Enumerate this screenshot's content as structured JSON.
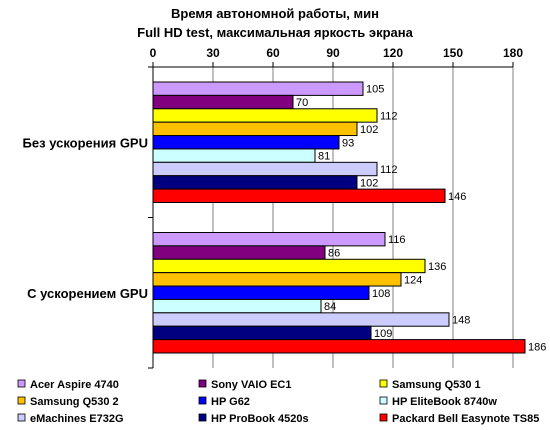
{
  "chart_data": {
    "type": "bar",
    "orientation": "horizontal",
    "title": "Время автономной работы, мин",
    "subtitle": "Full HD test, максимальная яркость экрана",
    "xlim": [
      0,
      180
    ],
    "xticks": [
      "0",
      "30",
      "60",
      "90",
      "120",
      "150",
      "180"
    ],
    "xtick_values": [
      0,
      30,
      60,
      90,
      120,
      150,
      180
    ],
    "grid": true,
    "legend_position": "bottom",
    "categories": [
      "Без ускорения GPU",
      "С ускорением GPU"
    ],
    "series": [
      {
        "name": "Acer Aspire 4740",
        "color": "#cc99ff",
        "values": [
          105,
          116
        ]
      },
      {
        "name": "Sony VAIO EC1",
        "color": "#800080",
        "values": [
          70,
          86
        ]
      },
      {
        "name": "Samsung Q530 1",
        "color": "#ffff00",
        "values": [
          112,
          136
        ]
      },
      {
        "name": "Samsung Q530 2",
        "color": "#ffc000",
        "values": [
          102,
          124
        ]
      },
      {
        "name": "HP G62",
        "color": "#0000ff",
        "values": [
          93,
          108
        ]
      },
      {
        "name": "HP EliteBook 8740w",
        "color": "#ccffff",
        "values": [
          81,
          84
        ]
      },
      {
        "name": "eMachines E732G",
        "color": "#ccccff",
        "values": [
          112,
          148
        ]
      },
      {
        "name": "HP ProBook 4520s",
        "color": "#000080",
        "values": [
          102,
          109
        ]
      },
      {
        "name": "Packard Bell Easynote TS85",
        "color": "#ff0000",
        "values": [
          146,
          186
        ]
      }
    ]
  }
}
